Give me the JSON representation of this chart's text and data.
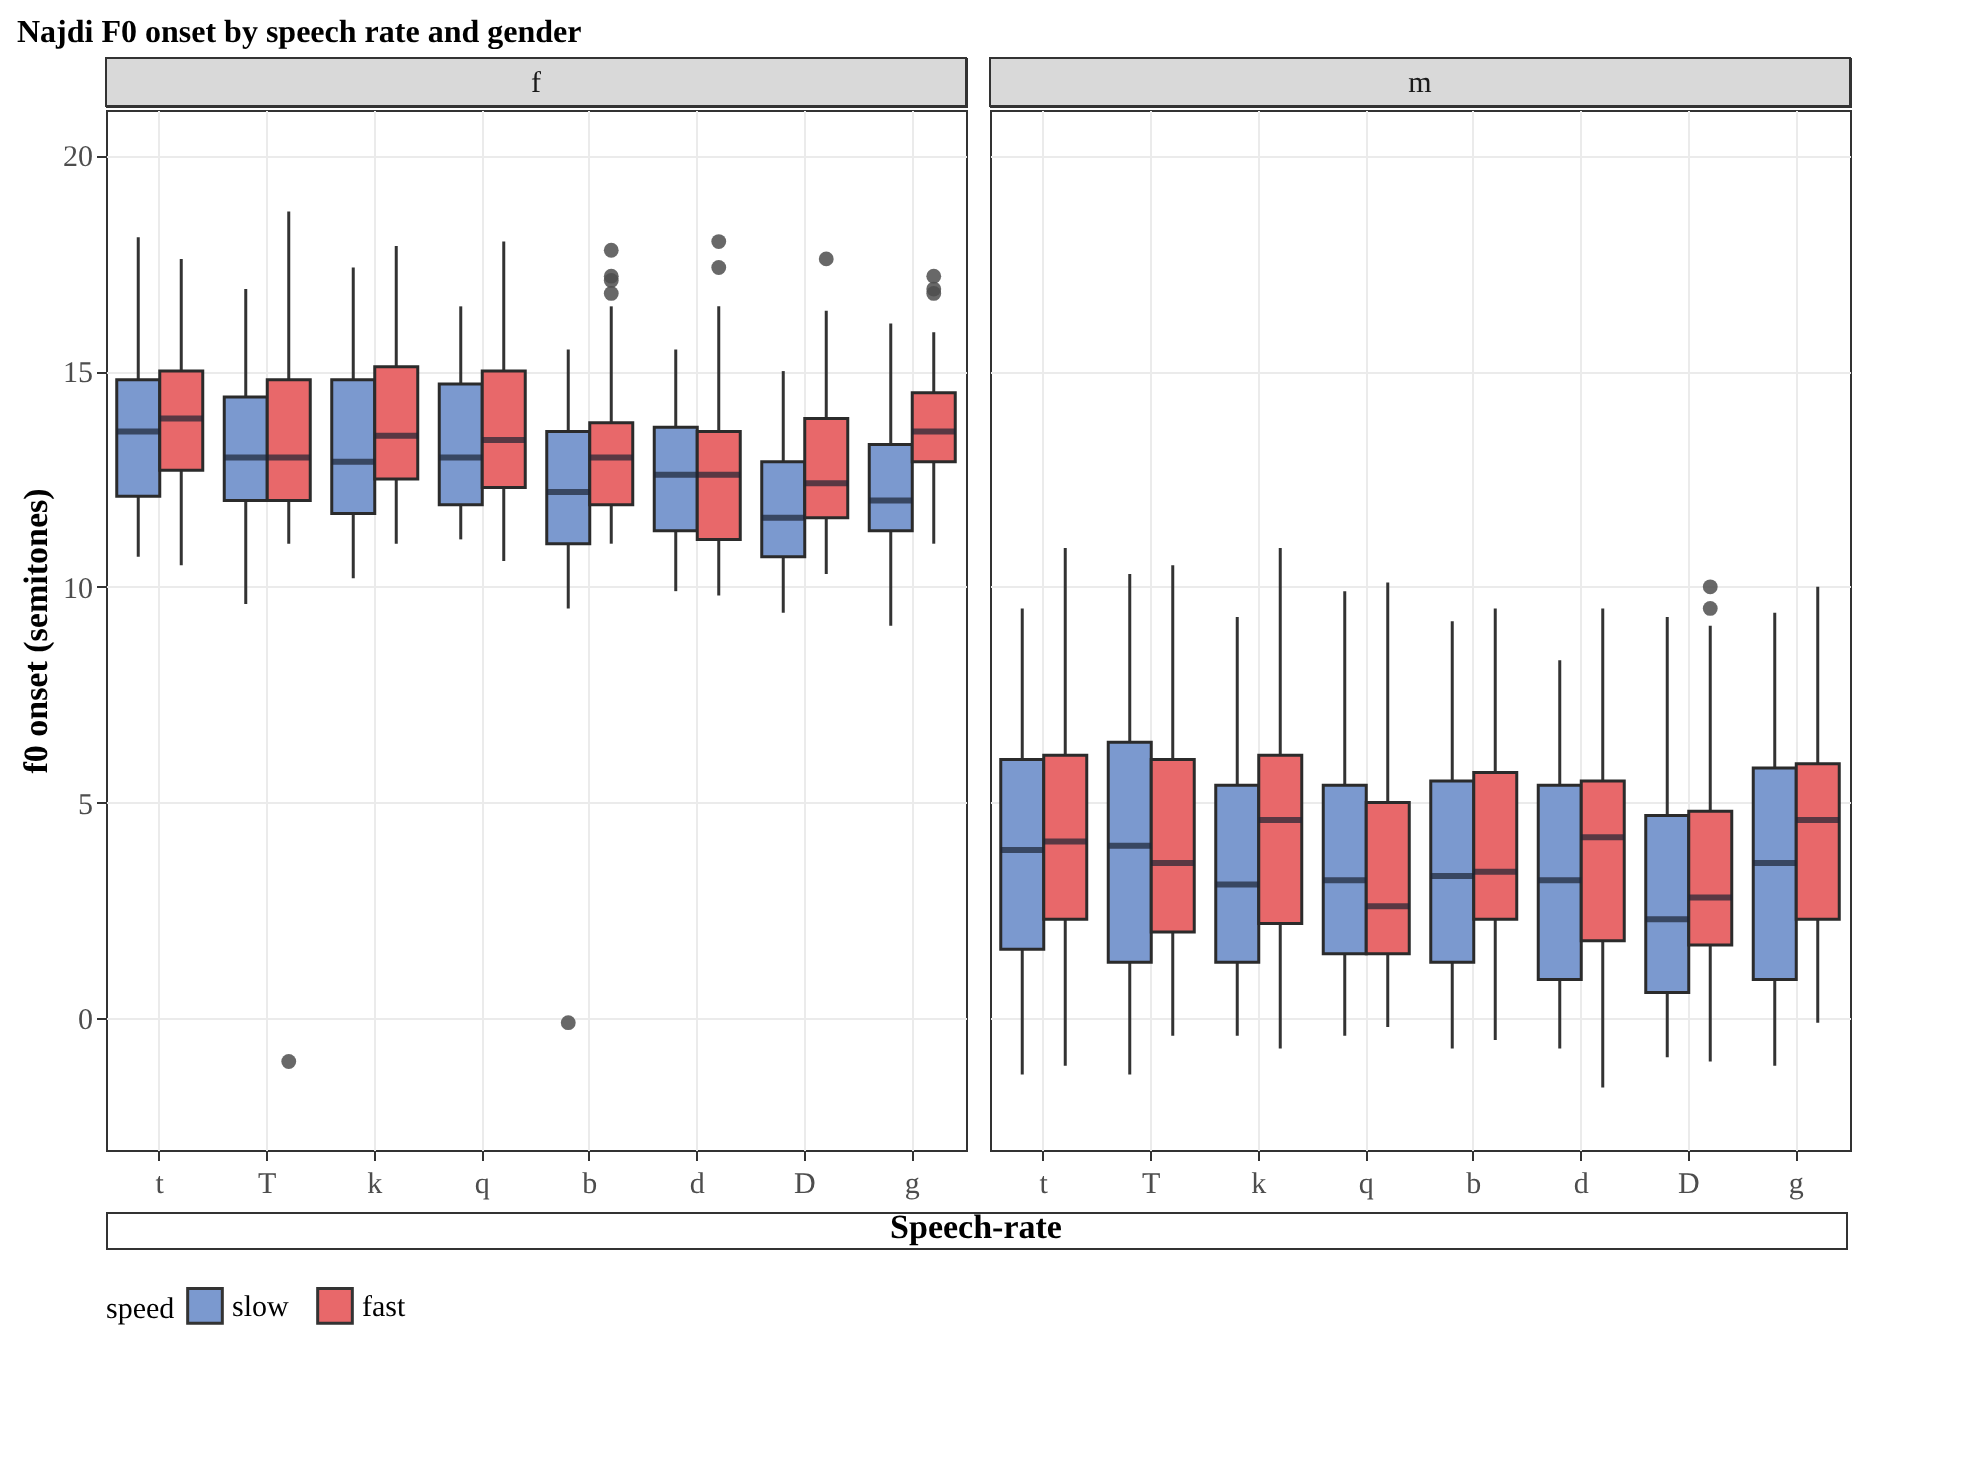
{
  "chart_data": [
    {
      "type": "box",
      "title": "Najdi F0 onset by speech rate and gender",
      "subtitle": "f",
      "xlabel": "Speech-rate",
      "ylabel": "f0 onset (semitones)",
      "legend_title": "speed",
      "legend": "bottom",
      "grid": true,
      "categories": [
        "t",
        "T",
        "k",
        "q",
        "b",
        "d",
        "D",
        "g"
      ],
      "ylim": [
        -3.05,
        21.05
      ],
      "yticks": [
        0,
        5,
        10,
        15,
        20
      ],
      "series": [
        {
          "name": "slow",
          "color": "#7b99cf",
          "boxes": [
            {
              "low": 10.7,
              "q1": 12.1,
              "median": 13.6,
              "q3": 14.8,
              "high": 18.1
            },
            {
              "low": 9.6,
              "q1": 12.0,
              "median": 13.0,
              "q3": 14.4,
              "high": 16.9
            },
            {
              "low": 10.2,
              "q1": 11.7,
              "median": 12.9,
              "q3": 14.8,
              "high": 17.4
            },
            {
              "low": 11.1,
              "q1": 11.9,
              "median": 13.0,
              "q3": 14.7,
              "high": 16.5
            },
            {
              "low": 9.5,
              "q1": 11.0,
              "median": 12.2,
              "q3": 13.6,
              "high": 15.5,
              "outliers": [
                -0.1
              ]
            },
            {
              "low": 9.9,
              "q1": 11.3,
              "median": 12.6,
              "q3": 13.7,
              "high": 15.5
            },
            {
              "low": 9.4,
              "q1": 10.7,
              "median": 11.6,
              "q3": 12.9,
              "high": 15.0
            },
            {
              "low": 9.1,
              "q1": 11.3,
              "median": 12.0,
              "q3": 13.3,
              "high": 16.1
            }
          ]
        },
        {
          "name": "fast",
          "color": "#e8686a",
          "boxes": [
            {
              "low": 10.5,
              "q1": 12.7,
              "median": 13.9,
              "q3": 15.0,
              "high": 17.6
            },
            {
              "low": 11.0,
              "q1": 12.0,
              "median": 13.0,
              "q3": 14.8,
              "high": 18.7,
              "outliers": [
                -1.0
              ]
            },
            {
              "low": 11.0,
              "q1": 12.5,
              "median": 13.5,
              "q3": 15.1,
              "high": 17.9
            },
            {
              "low": 10.6,
              "q1": 12.3,
              "median": 13.4,
              "q3": 15.0,
              "high": 18.0
            },
            {
              "low": 11.0,
              "q1": 11.9,
              "median": 13.0,
              "q3": 13.8,
              "high": 16.5,
              "outliers": [
                17.8,
                17.2,
                17.1,
                16.8
              ]
            },
            {
              "low": 9.8,
              "q1": 11.1,
              "median": 12.6,
              "q3": 13.6,
              "high": 16.5,
              "outliers": [
                18.0,
                17.4
              ]
            },
            {
              "low": 10.3,
              "q1": 11.6,
              "median": 12.4,
              "q3": 13.9,
              "high": 16.4,
              "outliers": [
                17.6
              ]
            },
            {
              "low": 11.0,
              "q1": 12.9,
              "median": 13.6,
              "q3": 14.5,
              "high": 15.9,
              "outliers": [
                17.2,
                16.9,
                16.8
              ]
            }
          ]
        }
      ]
    },
    {
      "type": "box",
      "subtitle": "m",
      "grid": true,
      "tick_labels": "x",
      "categories": [
        "t",
        "T",
        "k",
        "q",
        "b",
        "d",
        "D",
        "g"
      ],
      "ylim": [
        -3.05,
        21.05
      ],
      "yticks": [
        0,
        5,
        10,
        15,
        20
      ],
      "series": [
        {
          "name": "slow",
          "color": "#7b99cf",
          "boxes": [
            {
              "low": -1.3,
              "q1": 1.6,
              "median": 3.9,
              "q3": 6.0,
              "high": 9.5
            },
            {
              "low": -1.3,
              "q1": 1.3,
              "median": 4.0,
              "q3": 6.4,
              "high": 10.3
            },
            {
              "low": -0.4,
              "q1": 1.3,
              "median": 3.1,
              "q3": 5.4,
              "high": 9.3
            },
            {
              "low": -0.4,
              "q1": 1.5,
              "median": 3.2,
              "q3": 5.4,
              "high": 9.9
            },
            {
              "low": -0.7,
              "q1": 1.3,
              "median": 3.3,
              "q3": 5.5,
              "high": 9.2
            },
            {
              "low": -0.7,
              "q1": 0.9,
              "median": 3.2,
              "q3": 5.4,
              "high": 8.3
            },
            {
              "low": -0.9,
              "q1": 0.6,
              "median": 2.3,
              "q3": 4.7,
              "high": 9.3
            },
            {
              "low": -1.1,
              "q1": 0.9,
              "median": 3.6,
              "q3": 5.8,
              "high": 9.4
            }
          ]
        },
        {
          "name": "fast",
          "color": "#e8686a",
          "boxes": [
            {
              "low": -1.1,
              "q1": 2.3,
              "median": 4.1,
              "q3": 6.1,
              "high": 10.9
            },
            {
              "low": -0.4,
              "q1": 2.0,
              "median": 3.6,
              "q3": 6.0,
              "high": 10.5
            },
            {
              "low": -0.7,
              "q1": 2.2,
              "median": 4.6,
              "q3": 6.1,
              "high": 10.9
            },
            {
              "low": -0.2,
              "q1": 1.5,
              "median": 2.6,
              "q3": 5.0,
              "high": 10.1
            },
            {
              "low": -0.5,
              "q1": 2.3,
              "median": 3.4,
              "q3": 5.7,
              "high": 9.5
            },
            {
              "low": -1.6,
              "q1": 1.8,
              "median": 4.2,
              "q3": 5.5,
              "high": 9.5
            },
            {
              "low": -1.0,
              "q1": 1.7,
              "median": 2.8,
              "q3": 4.8,
              "high": 9.1,
              "outliers": [
                10.0,
                9.5
              ]
            },
            {
              "low": -0.1,
              "q1": 2.3,
              "median": 4.6,
              "q3": 5.9,
              "high": 10.0
            }
          ]
        }
      ]
    }
  ]
}
